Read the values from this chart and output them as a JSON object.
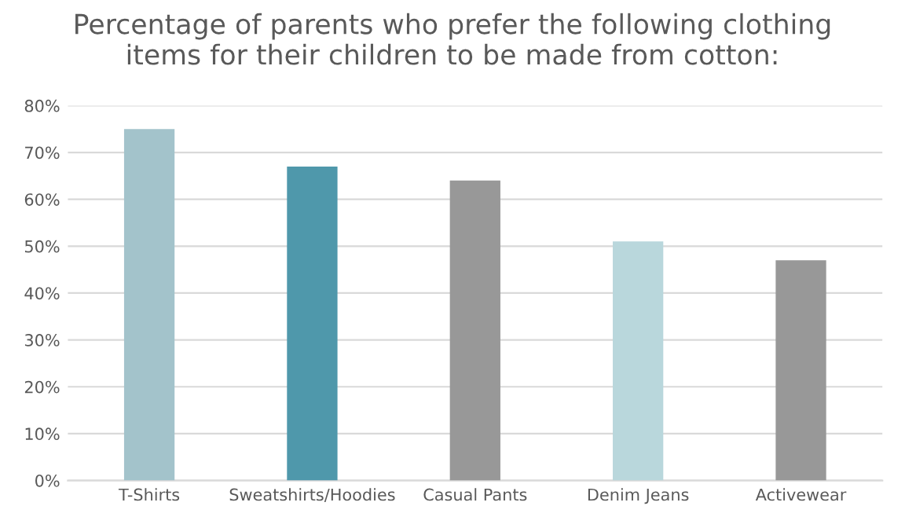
{
  "chart_data": {
    "type": "bar",
    "title": "Percentage of parents who prefer the following clothing\nitems for their children to be made from cotton:",
    "categories": [
      "T-Shirts",
      "Sweatshirts/Hoodies",
      "Casual Pants",
      "Denim Jeans",
      "Activewear"
    ],
    "values": [
      75,
      67,
      64,
      51,
      47
    ],
    "colors": [
      "#a3c3cb",
      "#4f98ab",
      "#989898",
      "#b9d7dc",
      "#989898"
    ],
    "ylim": [
      0,
      80
    ],
    "yticks": [
      {
        "value": 0,
        "label": "0%"
      },
      {
        "value": 10,
        "label": "10%"
      },
      {
        "value": 20,
        "label": "20%"
      },
      {
        "value": 30,
        "label": "30%"
      },
      {
        "value": 40,
        "label": "40%"
      },
      {
        "value": 50,
        "label": "50%"
      },
      {
        "value": 60,
        "label": "60%"
      },
      {
        "value": 70,
        "label": "70%"
      },
      {
        "value": 80,
        "label": "80%"
      }
    ],
    "grid": "y",
    "legend": false
  }
}
